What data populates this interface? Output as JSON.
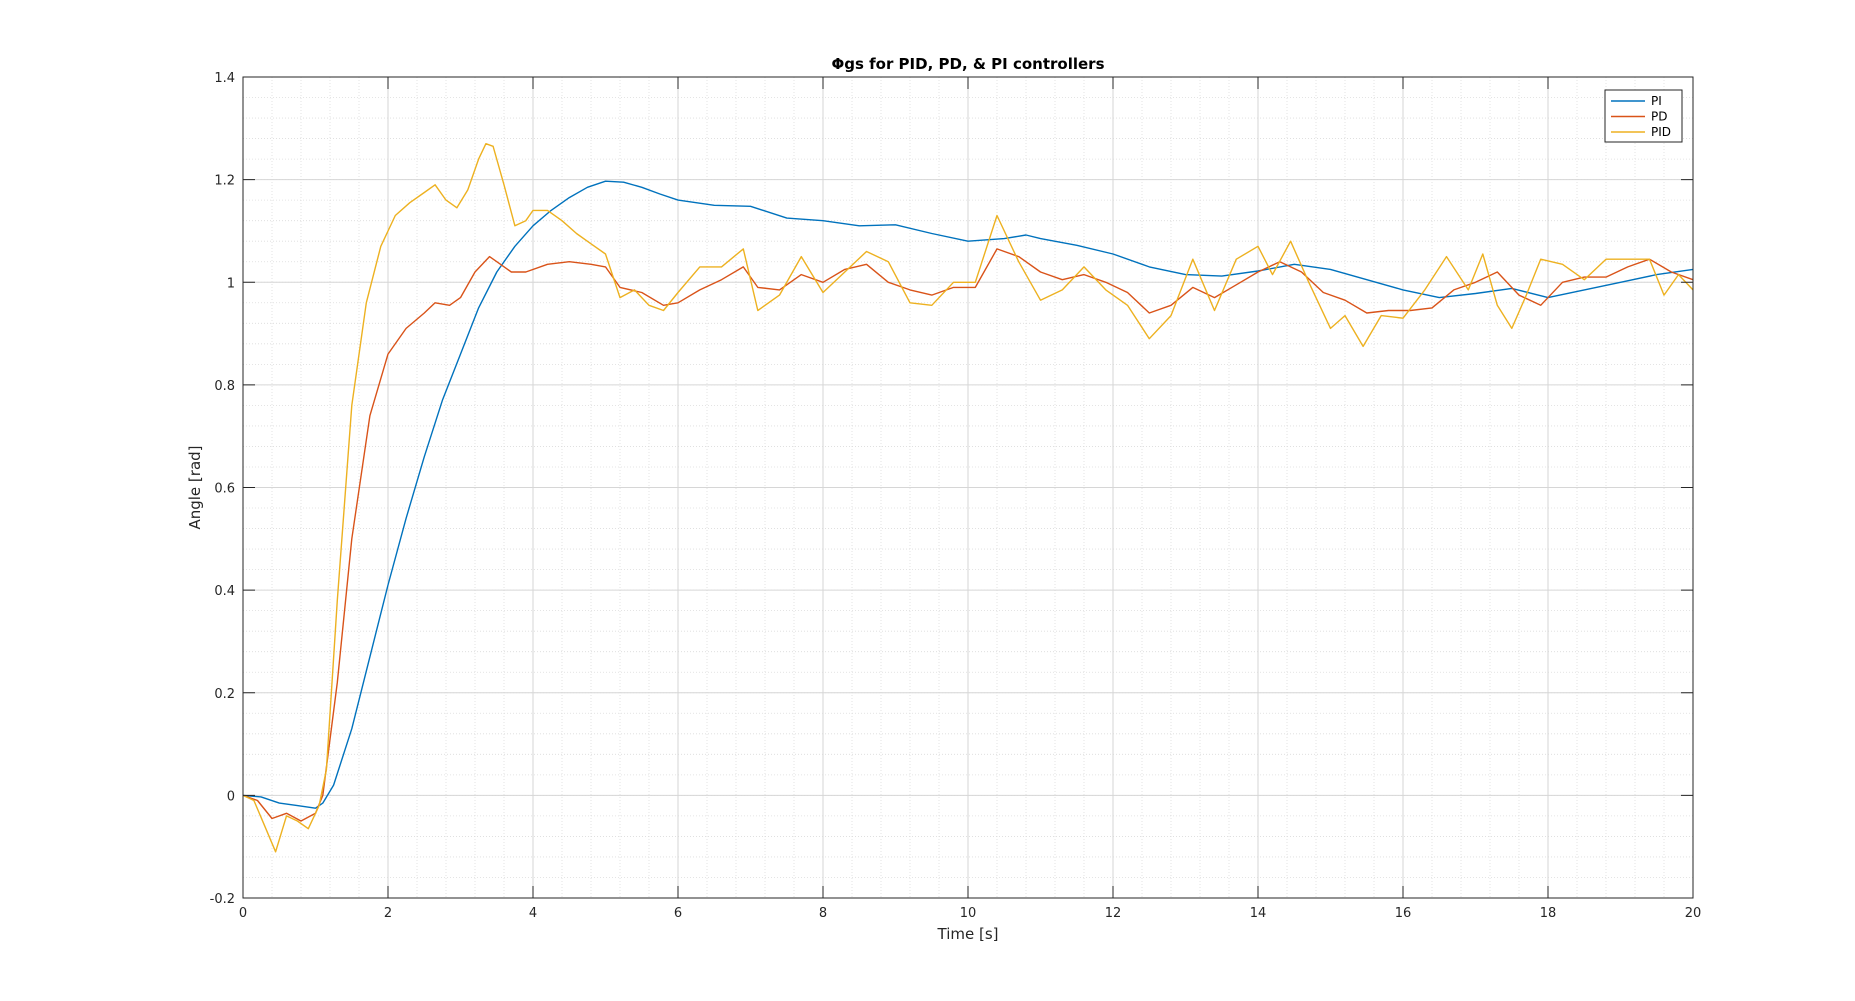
{
  "chart_data": {
    "type": "line",
    "title": "Φgs for PID, PD, & PI controllers",
    "xlabel": "Time [s]",
    "ylabel": "Angle [rad]",
    "xlim": [
      0,
      20
    ],
    "ylim": [
      -0.2,
      1.4
    ],
    "xticks": [
      0,
      2,
      4,
      6,
      8,
      10,
      12,
      14,
      16,
      18,
      20
    ],
    "yticks": [
      -0.2,
      0,
      0.2,
      0.4,
      0.6,
      0.8,
      1,
      1.2,
      1.4
    ],
    "xtick_labels": [
      "0",
      "2",
      "4",
      "6",
      "8",
      "10",
      "12",
      "14",
      "16",
      "18",
      "20"
    ],
    "ytick_labels": [
      "-0.2",
      "0",
      "0.2",
      "0.4",
      "0.6",
      "0.8",
      "1",
      "1.2",
      "1.4"
    ],
    "grid": true,
    "minor_grid": true,
    "legend_position": "top-right",
    "series": [
      {
        "name": "PI",
        "color": "#0072BD",
        "x": [
          0,
          0.25,
          0.5,
          0.75,
          1.0,
          1.1,
          1.25,
          1.5,
          1.75,
          2.0,
          2.25,
          2.5,
          2.75,
          3.0,
          3.25,
          3.5,
          3.75,
          4.0,
          4.25,
          4.5,
          4.75,
          5.0,
          5.25,
          5.5,
          5.75,
          6.0,
          6.5,
          7.0,
          7.5,
          8.0,
          8.5,
          9.0,
          9.5,
          10.0,
          10.5,
          10.8,
          11.0,
          11.5,
          12.0,
          12.5,
          13.0,
          13.5,
          14.0,
          14.5,
          15.0,
          15.5,
          16.0,
          16.5,
          17.0,
          17.5,
          18.0,
          18.5,
          19.0,
          19.5,
          20.0
        ],
        "y": [
          0,
          -0.003,
          -0.015,
          -0.02,
          -0.025,
          -0.015,
          0.02,
          0.13,
          0.27,
          0.41,
          0.54,
          0.66,
          0.77,
          0.86,
          0.95,
          1.02,
          1.07,
          1.11,
          1.14,
          1.165,
          1.185,
          1.197,
          1.195,
          1.185,
          1.172,
          1.16,
          1.15,
          1.148,
          1.125,
          1.12,
          1.11,
          1.112,
          1.095,
          1.08,
          1.085,
          1.092,
          1.085,
          1.072,
          1.055,
          1.03,
          1.015,
          1.012,
          1.022,
          1.035,
          1.025,
          1.005,
          0.985,
          0.97,
          0.978,
          0.988,
          0.97,
          0.985,
          1.0,
          1.015,
          1.025
        ]
      },
      {
        "name": "PD",
        "color": "#D95319",
        "x": [
          0,
          0.2,
          0.4,
          0.6,
          0.8,
          1.0,
          1.1,
          1.3,
          1.5,
          1.75,
          2.0,
          2.25,
          2.5,
          2.65,
          2.85,
          3.0,
          3.2,
          3.4,
          3.5,
          3.7,
          3.9,
          4.2,
          4.5,
          4.8,
          5.0,
          5.2,
          5.5,
          5.8,
          6.0,
          6.3,
          6.6,
          6.9,
          7.1,
          7.4,
          7.7,
          8.0,
          8.3,
          8.6,
          8.9,
          9.2,
          9.5,
          9.8,
          10.1,
          10.4,
          10.7,
          11.0,
          11.3,
          11.6,
          11.9,
          12.2,
          12.5,
          12.8,
          13.1,
          13.4,
          13.7,
          14.0,
          14.3,
          14.6,
          14.9,
          15.2,
          15.5,
          15.8,
          16.1,
          16.4,
          16.7,
          17.0,
          17.3,
          17.6,
          17.9,
          18.2,
          18.5,
          18.8,
          19.1,
          19.4,
          19.7,
          20.0
        ],
        "y": [
          0,
          -0.01,
          -0.045,
          -0.035,
          -0.05,
          -0.035,
          0.0,
          0.22,
          0.5,
          0.74,
          0.86,
          0.91,
          0.94,
          0.96,
          0.955,
          0.97,
          1.02,
          1.05,
          1.04,
          1.02,
          1.02,
          1.035,
          1.04,
          1.035,
          1.03,
          0.99,
          0.98,
          0.955,
          0.96,
          0.985,
          1.005,
          1.03,
          0.99,
          0.985,
          1.015,
          1.0,
          1.025,
          1.035,
          1.0,
          0.985,
          0.975,
          0.99,
          0.99,
          1.065,
          1.05,
          1.02,
          1.005,
          1.015,
          1.0,
          0.98,
          0.94,
          0.955,
          0.99,
          0.97,
          0.995,
          1.02,
          1.04,
          1.02,
          0.98,
          0.965,
          0.94,
          0.945,
          0.945,
          0.95,
          0.985,
          1.0,
          1.02,
          0.975,
          0.955,
          1.0,
          1.01,
          1.01,
          1.03,
          1.045,
          1.02,
          1.005
        ]
      },
      {
        "name": "PID",
        "color": "#EDB120",
        "x": [
          0,
          0.15,
          0.3,
          0.45,
          0.6,
          0.75,
          0.9,
          1.05,
          1.15,
          1.3,
          1.5,
          1.7,
          1.9,
          2.1,
          2.3,
          2.5,
          2.65,
          2.8,
          2.95,
          3.1,
          3.25,
          3.35,
          3.45,
          3.6,
          3.75,
          3.9,
          4.0,
          4.2,
          4.4,
          4.6,
          4.8,
          5.0,
          5.2,
          5.4,
          5.6,
          5.8,
          6.0,
          6.3,
          6.6,
          6.9,
          7.1,
          7.4,
          7.7,
          8.0,
          8.3,
          8.6,
          8.9,
          9.2,
          9.5,
          9.8,
          10.1,
          10.4,
          10.7,
          11.0,
          11.3,
          11.6,
          11.9,
          12.2,
          12.5,
          12.8,
          13.1,
          13.4,
          13.7,
          14.0,
          14.2,
          14.45,
          14.7,
          15.0,
          15.2,
          15.45,
          15.7,
          16.0,
          16.3,
          16.6,
          16.9,
          17.1,
          17.3,
          17.5,
          17.7,
          17.9,
          18.2,
          18.5,
          18.8,
          19.1,
          19.4,
          19.6,
          19.8,
          20.0
        ],
        "y": [
          0,
          -0.01,
          -0.06,
          -0.11,
          -0.04,
          -0.05,
          -0.065,
          -0.02,
          0.05,
          0.38,
          0.76,
          0.96,
          1.07,
          1.13,
          1.155,
          1.175,
          1.19,
          1.16,
          1.145,
          1.18,
          1.24,
          1.27,
          1.265,
          1.19,
          1.11,
          1.12,
          1.14,
          1.14,
          1.12,
          1.095,
          1.075,
          1.055,
          0.97,
          0.985,
          0.955,
          0.945,
          0.98,
          1.03,
          1.03,
          1.065,
          0.945,
          0.975,
          1.05,
          0.98,
          1.02,
          1.06,
          1.04,
          0.96,
          0.955,
          1.0,
          1.0,
          1.13,
          1.04,
          0.965,
          0.985,
          1.03,
          0.985,
          0.955,
          0.89,
          0.935,
          1.045,
          0.945,
          1.045,
          1.07,
          1.015,
          1.08,
          1.0,
          0.91,
          0.935,
          0.875,
          0.935,
          0.93,
          0.985,
          1.05,
          0.985,
          1.055,
          0.955,
          0.91,
          0.975,
          1.045,
          1.035,
          1.005,
          1.045,
          1.045,
          1.045,
          0.975,
          1.015,
          0.985
        ]
      }
    ]
  }
}
